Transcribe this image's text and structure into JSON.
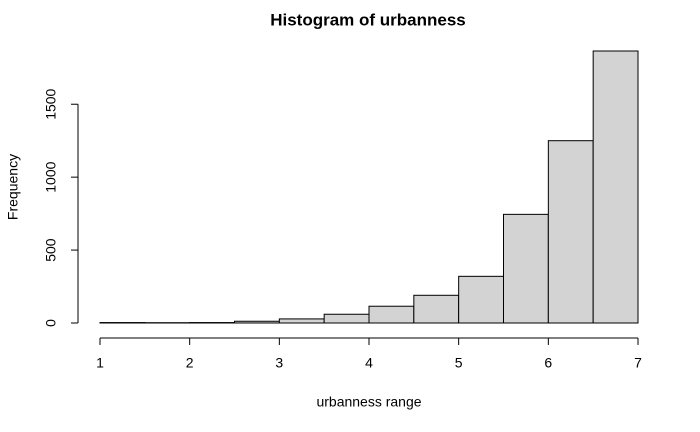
{
  "chart_data": {
    "type": "histogram",
    "title": "Histogram of urbanness",
    "x_label": "urbanness range",
    "y_label": "Frequency",
    "bins": [
      1,
      1.5,
      2,
      2.5,
      3,
      3.5,
      4,
      4.5,
      5,
      5.5,
      6,
      6.5,
      7
    ],
    "counts": [
      3,
      2,
      3,
      12,
      28,
      60,
      115,
      190,
      320,
      745,
      1250,
      1865
    ],
    "color": "#d3d3d3",
    "xlim": [
      1,
      7
    ],
    "xticks": [
      1,
      2,
      3,
      4,
      5,
      6,
      7
    ],
    "ylim": [
      0,
      1865
    ],
    "yticks": [
      0,
      500,
      1000,
      1500
    ]
  }
}
